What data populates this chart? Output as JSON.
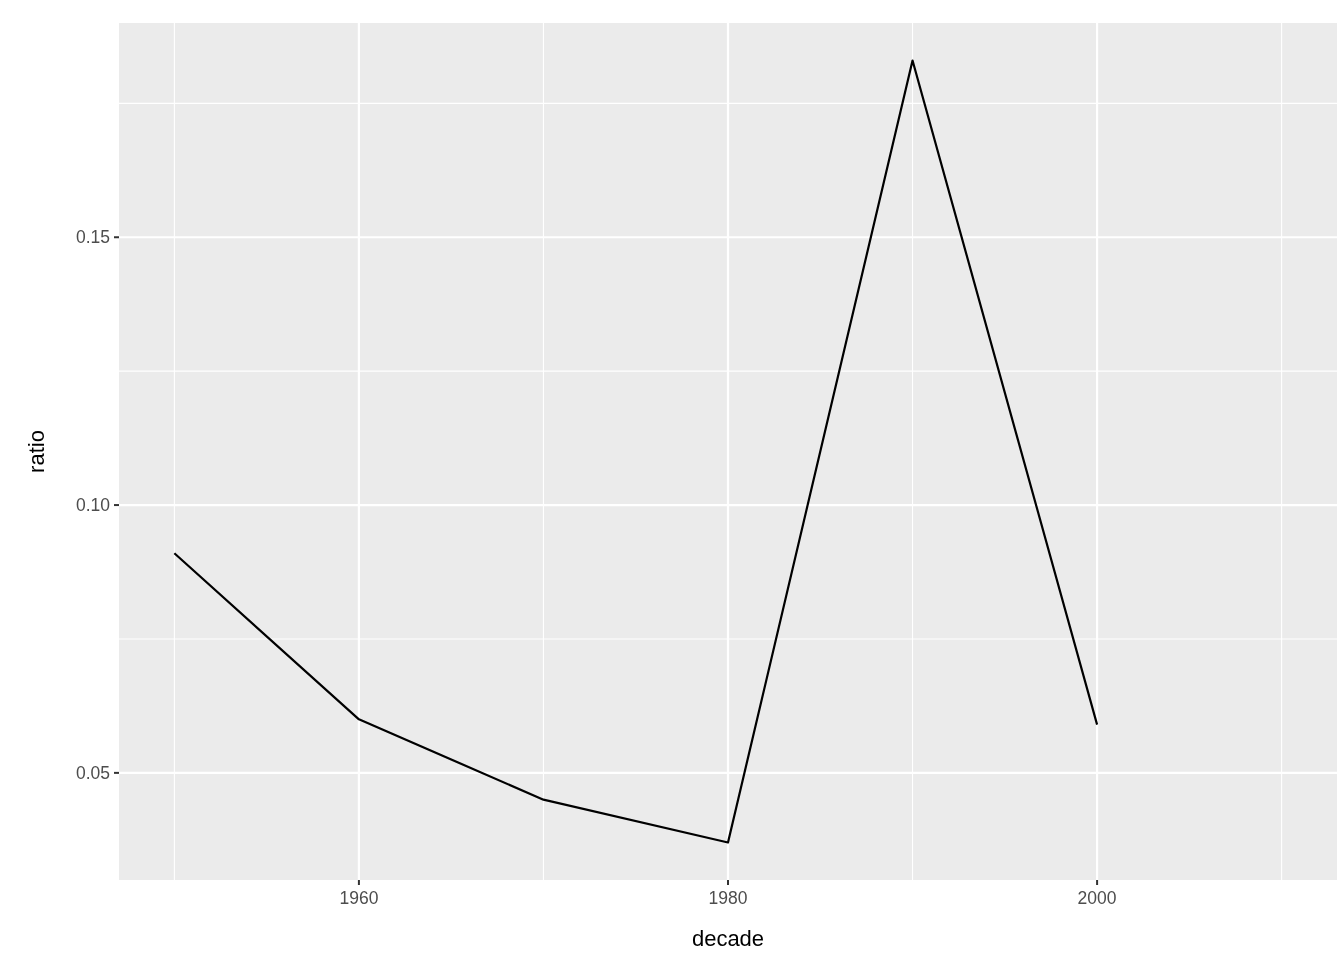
{
  "chart_data": {
    "type": "line",
    "xlabel": "decade",
    "ylabel": "ratio",
    "x": [
      1950,
      1960,
      1970,
      1980,
      1990,
      2000
    ],
    "series": [
      {
        "color": "#000000",
        "values": [
          0.091,
          0.06,
          0.045,
          0.037,
          0.183,
          0.059
        ]
      }
    ],
    "xlim": [
      1947,
      2013
    ],
    "xticks": [
      1960,
      1980,
      2000
    ],
    "ylim": [
      0.03,
      0.19
    ],
    "yticks": [
      {
        "value": 0.05,
        "label": "0.05"
      },
      {
        "value": 0.1,
        "label": "0.10"
      },
      {
        "value": 0.15,
        "label": "0.15"
      }
    ],
    "grid": true
  }
}
